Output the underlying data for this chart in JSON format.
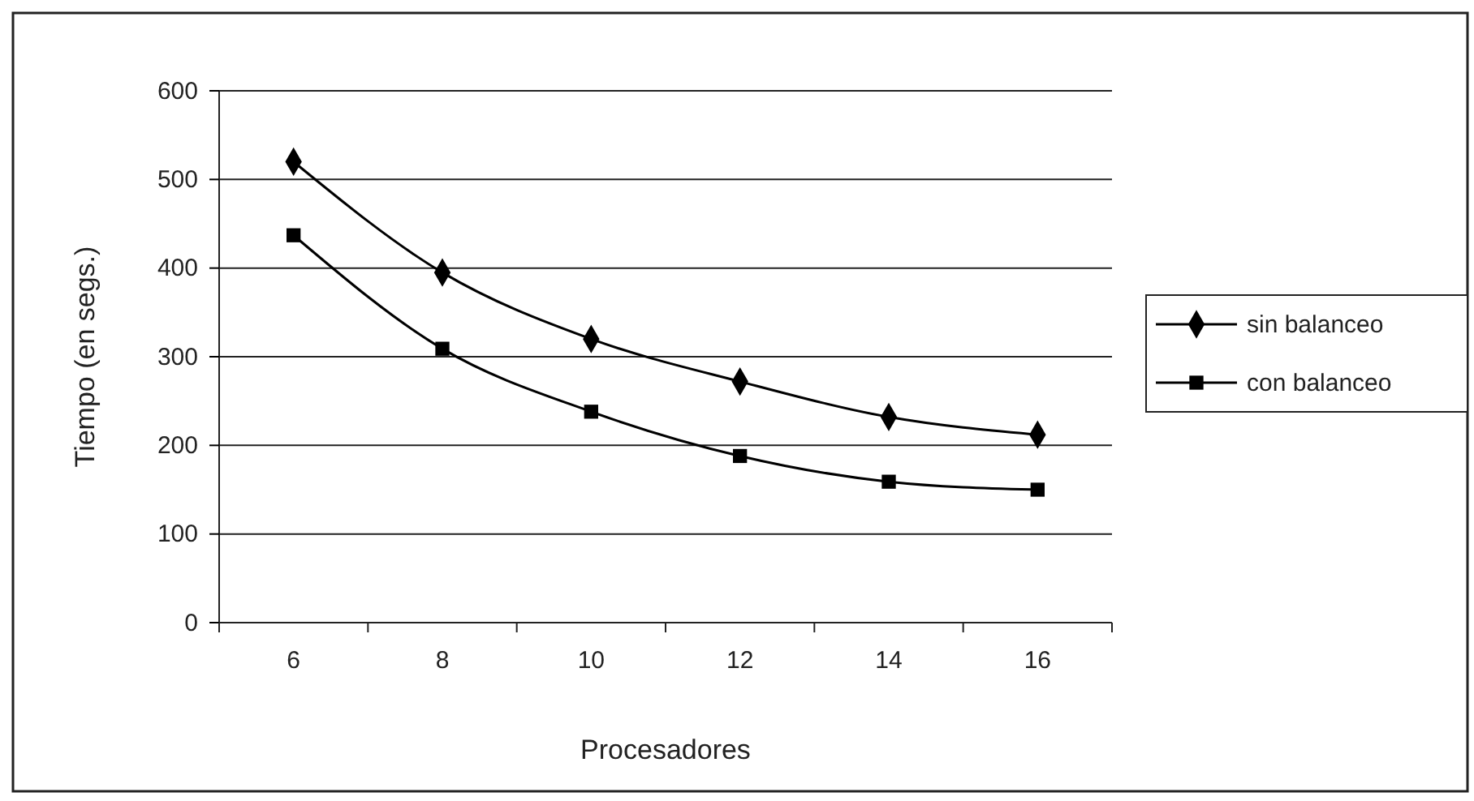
{
  "chart_data": {
    "type": "line",
    "xlabel": "Procesadores",
    "ylabel": "Tiempo (en segs.)",
    "categories": [
      "6",
      "8",
      "10",
      "12",
      "14",
      "16"
    ],
    "series": [
      {
        "name": "sin balanceo",
        "color": "#000000",
        "marker": "diamond",
        "values": [
          520,
          395,
          320,
          272,
          232,
          212
        ]
      },
      {
        "name": "con balanceo",
        "color": "#000000",
        "marker": "square",
        "values": [
          437,
          309,
          238,
          188,
          159,
          150
        ]
      }
    ],
    "ylim": [
      0,
      600
    ],
    "yticks": [
      0,
      100,
      200,
      300,
      400,
      500,
      600
    ],
    "grid": "y",
    "legend": "right",
    "line_style": "solid"
  }
}
